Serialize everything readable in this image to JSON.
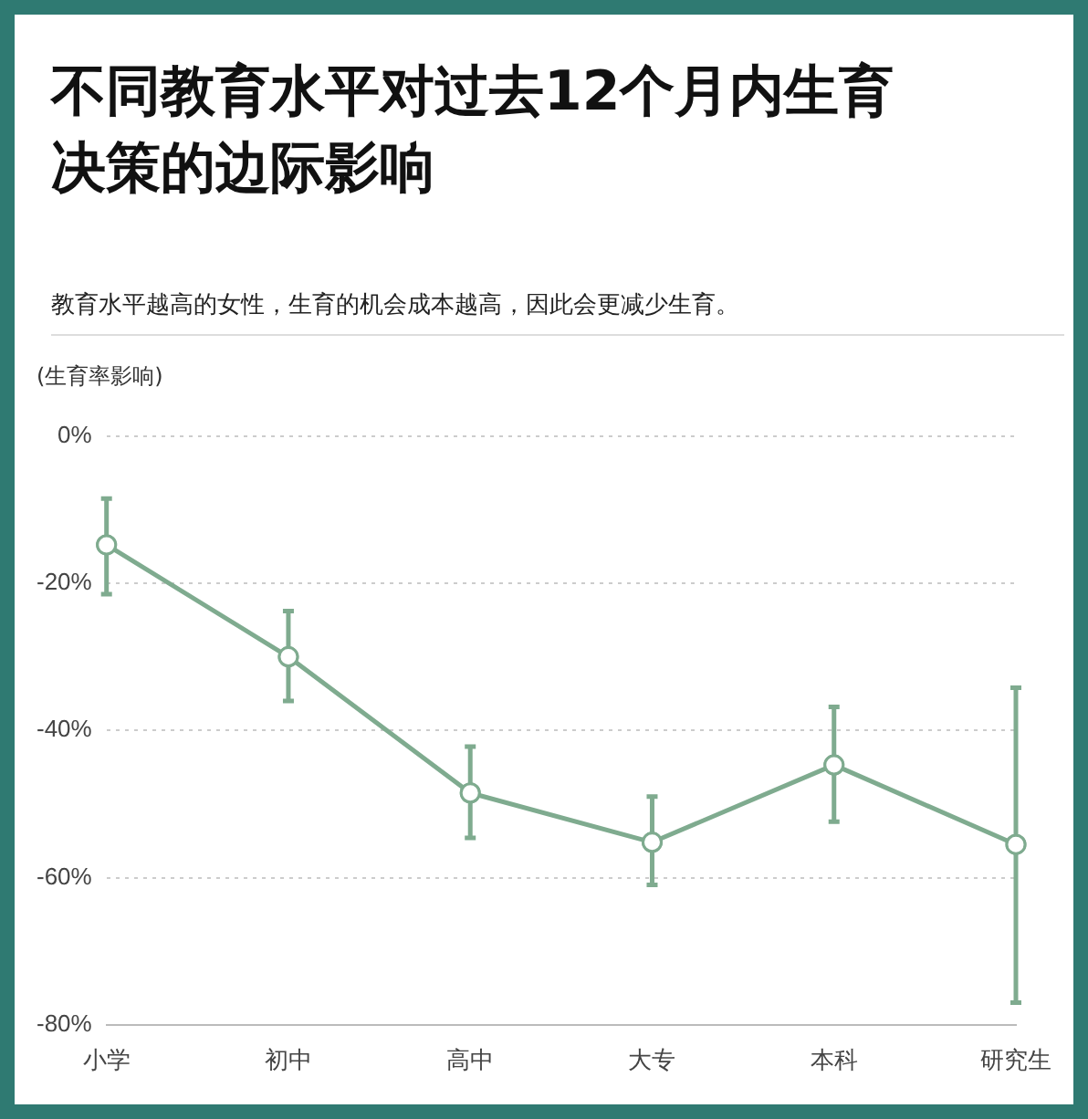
{
  "chart_data": {
    "type": "line",
    "title": "不同教育水平对过去12个月内生育决策的边际影响",
    "subtitle": "教育水平越高的女性，生育的机会成本越高，因此会更减少生育。",
    "ylabel": "(生育率影响)",
    "categories": [
      "小学",
      "初中",
      "高中",
      "大专",
      "本科",
      "研究生"
    ],
    "series": [
      {
        "color": "#7fab8f",
        "values": [
          -14.8,
          -30,
          -48.5,
          -55.2,
          -44.7,
          -55.5
        ],
        "errors": [
          [
            -21.5,
            -8.5
          ],
          [
            -36,
            -23.8
          ],
          [
            -54.6,
            -42.2
          ],
          [
            -61,
            -49
          ],
          [
            -52.4,
            -36.8
          ],
          [
            -77,
            -34.2
          ]
        ]
      }
    ],
    "ylim": [
      -80,
      0
    ],
    "yticks": [
      {
        "value": -80,
        "label": "-80%"
      },
      {
        "value": -60,
        "label": "-60%"
      },
      {
        "value": -40,
        "label": "-40%"
      },
      {
        "value": -20,
        "label": "-20%"
      },
      {
        "value": 0,
        "label": "0%"
      }
    ],
    "grid": "y",
    "marker": "circle",
    "line_style": "solid",
    "legend": false
  }
}
